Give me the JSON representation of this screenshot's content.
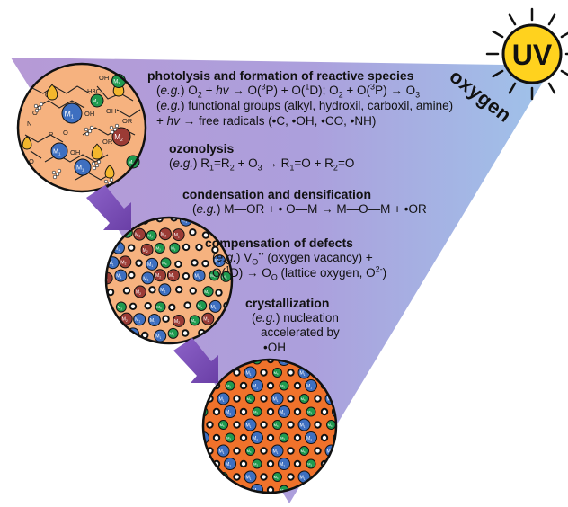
{
  "uv_label": "UV",
  "oxygen_label": "oxygen",
  "stages": [
    {
      "title": "photolysis and formation of reactive species",
      "eg": "e.g.",
      "l1_a": " O",
      "l1_b": " + ",
      "l1_hv": "hv",
      "l1_c": " → O(",
      "l1_d": "P) + O(",
      "l1_e": "D); O",
      "l1_f": " + O(",
      "l1_g": "P) → O",
      "l2": " functional groups (alkyl, hydroxil, carboxil, amine)",
      "l3_a": "+ ",
      "l3_hv": "hv",
      "l3_b": " → free radicals (•C, •OH, •CO, •NH)"
    },
    {
      "title": "ozonolysis",
      "eg": "e.g.",
      "l1_a": " R",
      "l1_b": "=R",
      "l1_c": " + O",
      "l1_d": " → R",
      "l1_e": "=O + R",
      "l1_f": "=O"
    },
    {
      "title": "condensation and densification",
      "eg": "e.g.",
      "l1": " M—OR + • O—M → M—O—M + •OR"
    },
    {
      "title": "compensation of defects",
      "eg": "e.g.",
      "l1_a": " V",
      "l1_sub": "O",
      "l1_sup": "••",
      "l1_b": " (oxygen vacancy) +",
      "l2_a": "O(",
      "l2_b": "D) → O",
      "l2_sub": "O",
      "l2_c": " (lattice oxygen, O",
      "l2_sup": "2-",
      "l2_d": ")"
    },
    {
      "title": "crystallization",
      "eg": "e.g.",
      "l1": " nucleation",
      "l2": "accelerated by",
      "l3": "•OH"
    }
  ],
  "sub_2": "2",
  "sub_1": "1",
  "sub_3": "3",
  "sup_3": "3",
  "sup_1": "1",
  "metal_labels": [
    "M1",
    "M2",
    "M3"
  ],
  "molecule_labels": {
    "ch3": "H3C",
    "oh": "OH",
    "or": "OR",
    "r": "R",
    "o": "O",
    "n": "N"
  },
  "colors": {
    "triangle_left": "#b69ad6",
    "triangle_right": "#9fc3ea",
    "circle_fill": "#f6b27f",
    "circle_dense": "#f0722b",
    "m1": "#3e6fc0",
    "m2": "#9b3b35",
    "m3": "#1f9a4f",
    "droplet": "#f3b72d",
    "arrow": "#7e4fb8",
    "sun": "#ffd21e"
  }
}
